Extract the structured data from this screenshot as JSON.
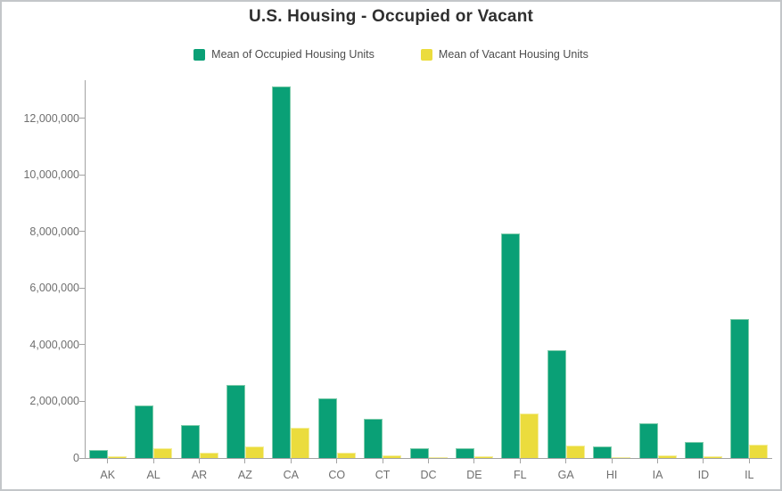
{
  "chart_data": {
    "type": "bar",
    "title": "U.S. Housing - Occupied or Vacant",
    "xlabel": "",
    "ylabel": "",
    "categories": [
      "AK",
      "AL",
      "AR",
      "AZ",
      "CA",
      "CO",
      "CT",
      "DC",
      "DE",
      "FL",
      "GA",
      "HI",
      "IA",
      "ID",
      "IL"
    ],
    "series": [
      {
        "name": "Mean of Occupied Housing Units",
        "color": "#0aa076",
        "edge_color": "#7fccab",
        "values": [
          270000,
          1870000,
          1150000,
          2590000,
          13130000,
          2120000,
          1370000,
          340000,
          335000,
          7930000,
          3820000,
          410000,
          1240000,
          580000,
          4900000
        ]
      },
      {
        "name": "Mean of Vacant Housing Units",
        "color": "#ebdc3d",
        "edge_color": "#f4ee9b",
        "values": [
          60000,
          360000,
          190000,
          410000,
          1080000,
          200000,
          110000,
          40000,
          70000,
          1570000,
          440000,
          40000,
          110000,
          57000,
          460000
        ]
      }
    ],
    "yticks": [
      0,
      2000000,
      4000000,
      6000000,
      8000000,
      10000000,
      12000000
    ],
    "ylim": [
      0,
      13350000
    ],
    "grid": false,
    "legend_position": "top-center",
    "colors": {
      "title_text": "#2f2f2f",
      "legend_text": "#4d4d4d",
      "axis_text": "#6f6f6f",
      "axis_line": "#a3a3a3",
      "background": "#ffffff",
      "frame_border": "#c3c6c9"
    }
  }
}
